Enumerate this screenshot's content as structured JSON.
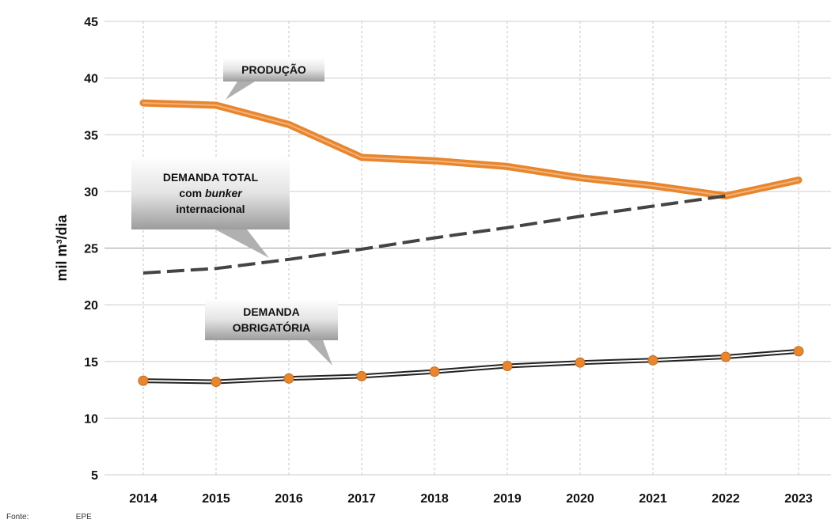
{
  "chart_data": {
    "type": "line",
    "categories": [
      "2014",
      "2015",
      "2016",
      "2017",
      "2018",
      "2019",
      "2020",
      "2021",
      "2022",
      "2023"
    ],
    "ylabel": "mil m³/dia",
    "ylim": [
      5,
      45
    ],
    "yticks": [
      "5",
      "10",
      "15",
      "20",
      "25",
      "30",
      "35",
      "40",
      "45"
    ],
    "grid": "on",
    "series": [
      {
        "key": "producao",
        "label_lines": [
          "PRODUÇÃO"
        ],
        "style": "thick-line",
        "color": "#e8862e",
        "values": [
          37.8,
          37.6,
          35.9,
          33.0,
          32.7,
          32.2,
          31.2,
          30.5,
          29.6,
          31.0
        ]
      },
      {
        "key": "demanda_total",
        "label_lines": [
          "DEMANDA TOTAL",
          "com bunker",
          "internacional"
        ],
        "style": "dashed-line",
        "color": "#444444",
        "values": [
          22.8,
          23.2,
          24.0,
          24.9,
          25.9,
          26.8,
          27.8,
          28.7,
          29.6,
          null
        ]
      },
      {
        "key": "demanda_obrigatoria",
        "label_lines": [
          "DEMANDA",
          "OBRIGATÓRIA"
        ],
        "style": "line-with-markers",
        "color": "#222222",
        "marker_color": "#e8862e",
        "values": [
          13.3,
          13.2,
          13.5,
          13.7,
          14.1,
          14.6,
          14.9,
          15.1,
          15.4,
          15.9
        ]
      }
    ]
  },
  "source": {
    "label": "Fonte:",
    "value": "EPE"
  }
}
